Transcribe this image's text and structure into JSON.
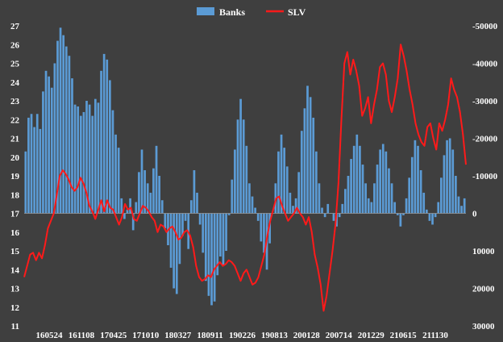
{
  "chart_data": {
    "type": "bar+line",
    "title": "",
    "legend": {
      "placement": "top-center",
      "items": [
        {
          "name": "Banks",
          "color": "#5b9bd5",
          "kind": "bar"
        },
        {
          "name": "SLV",
          "color": "#ff1a1a",
          "kind": "line"
        }
      ]
    },
    "x_tick_labels": [
      "160524",
      "161108",
      "170425",
      "171010",
      "180327",
      "180911",
      "190226",
      "190813",
      "200128",
      "200714",
      "201229",
      "210615",
      "211130"
    ],
    "y_left": {
      "min": 11,
      "max": 27,
      "baseline": 17,
      "ticks": [
        "11",
        "12",
        "13",
        "14",
        "15",
        "16",
        "17",
        "18",
        "19",
        "20",
        "21",
        "22",
        "23",
        "24",
        "25",
        "26",
        "27"
      ]
    },
    "y_right": {
      "min": -50000,
      "max": 30000,
      "inverted": true,
      "ticks": [
        "-50000",
        "-40000",
        "-30000",
        "-20000",
        "-10000",
        "0",
        "10000",
        "20000",
        "30000"
      ]
    },
    "series": [
      {
        "name": "Banks",
        "type": "bar",
        "axis": "left",
        "color": "#5b9bd5",
        "values": [
          20.3,
          22.1,
          22.3,
          21.6,
          22.3,
          21.5,
          23.5,
          24.6,
          24.3,
          23.7,
          25.0,
          26.2,
          26.9,
          26.5,
          25.9,
          25.4,
          24.2,
          22.8,
          22.7,
          22.2,
          22.4,
          23.0,
          22.8,
          22.2,
          23.1,
          22.9,
          24.6,
          25.5,
          25.2,
          24.1,
          22.5,
          21.2,
          20.5,
          17.8,
          16.7,
          17.2,
          17.8,
          16.1,
          17.6,
          19.2,
          20.4,
          19.3,
          18.6,
          18.1,
          19.4,
          20.6,
          19.0,
          17.7,
          16.2,
          15.3,
          14.1,
          13.0,
          12.7,
          14.3,
          15.8,
          16.6,
          15.1,
          17.7,
          19.3,
          18.1,
          16.4,
          14.9,
          13.4,
          12.6,
          12.1,
          12.3,
          13.7,
          14.7,
          14.2,
          15.0,
          16.9,
          18.8,
          20.4,
          22.0,
          23.1,
          22.0,
          20.6,
          18.6,
          17.9,
          17.3,
          16.6,
          15.5,
          14.9,
          14.0,
          15.4,
          17.0,
          18.6,
          20.3,
          21.2,
          20.5,
          19.5,
          18.1,
          17.4,
          17.8,
          19.2,
          21.4,
          22.6,
          23.8,
          23.2,
          22.1,
          20.3,
          18.6,
          17.3,
          16.8,
          17.5,
          17.0,
          16.6,
          16.3,
          16.8,
          17.5,
          18.3,
          19.0,
          19.9,
          20.6,
          21.2,
          20.6,
          19.6,
          18.6,
          17.8,
          17.6,
          18.6,
          19.6,
          20.4,
          20.7,
          20.3,
          19.4,
          18.6,
          17.6,
          16.9,
          16.3,
          16.9,
          17.8,
          18.9,
          20.0,
          20.9,
          20.6,
          19.3,
          18.1,
          17.2,
          16.6,
          16.4,
          16.8,
          17.6,
          18.9,
          20.1,
          20.9,
          21.0,
          20.4,
          19.0,
          17.9,
          17.4,
          17.8
        ]
      },
      {
        "name": "SLV",
        "type": "line",
        "axis": "right",
        "color": "#ff1a1a",
        "values": [
          17000,
          14000,
          11000,
          10500,
          12500,
          10500,
          12000,
          8500,
          4000,
          2000,
          0,
          -5000,
          -10000,
          -11500,
          -10500,
          -9000,
          -7000,
          -6000,
          -7000,
          -9500,
          -8000,
          -5500,
          -2000,
          -500,
          1500,
          -1000,
          -3500,
          -500,
          -3500,
          -1500,
          -1000,
          1000,
          3000,
          1000,
          -2500,
          -1000,
          -1500,
          1500,
          2000,
          0,
          -2000,
          -1500,
          -500,
          1000,
          2000,
          5000,
          3000,
          3500,
          5000,
          4000,
          3500,
          5000,
          7000,
          6500,
          5000,
          4500,
          6000,
          9000,
          14000,
          17000,
          18000,
          17500,
          16500,
          17000,
          15000,
          14000,
          13000,
          14000,
          13500,
          12500,
          13000,
          14000,
          16000,
          18000,
          16000,
          15000,
          17000,
          19000,
          18500,
          17000,
          14000,
          11000,
          6000,
          2000,
          -1000,
          -4000,
          -4500,
          -2000,
          0,
          2000,
          1000,
          0,
          -1500,
          0,
          1000,
          3000,
          1000,
          5000,
          11000,
          14500,
          19000,
          26000,
          22000,
          16000,
          10000,
          3000,
          -8000,
          -25000,
          -40000,
          -43000,
          -37000,
          -41000,
          -38000,
          -34000,
          -26000,
          -28000,
          -31000,
          -24000,
          -29000,
          -33000,
          -39000,
          -40000,
          -37000,
          -30000,
          -27000,
          -31000,
          -36000,
          -45000,
          -42000,
          -38000,
          -33000,
          -29000,
          -24000,
          -21000,
          -19000,
          -18000,
          -23000,
          -24000,
          -20000,
          -17000,
          -24000,
          -22000,
          -25000,
          -29000,
          -36000,
          -33000,
          -31000,
          -27000,
          -21000,
          -13000
        ]
      }
    ]
  }
}
